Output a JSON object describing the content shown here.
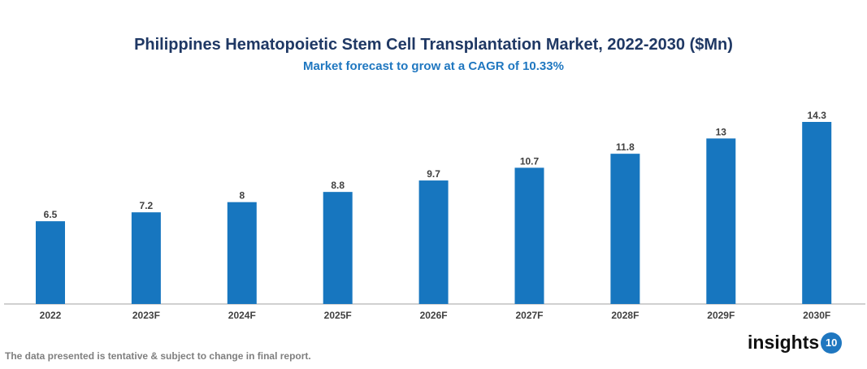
{
  "chart_data": {
    "type": "bar",
    "title": "Philippines Hematopoietic Stem Cell Transplantation Market, 2022-2030 ($Mn)",
    "subtitle": "Market forecast to grow at a CAGR of 10.33%",
    "categories": [
      "2022",
      "2023F",
      "2024F",
      "2025F",
      "2026F",
      "2027F",
      "2028F",
      "2029F",
      "2030F"
    ],
    "values": [
      6.5,
      7.2,
      8,
      8.8,
      9.7,
      10.7,
      11.8,
      13,
      14.3
    ],
    "data_labels": [
      "6.5",
      "7.2",
      "8",
      "8.8",
      "9.7",
      "10.7",
      "11.8",
      "13",
      "14.3"
    ],
    "xlabel": "",
    "ylabel": "",
    "ylim": [
      0,
      14.3
    ],
    "grid": false,
    "legend": "none",
    "bar_color": "#1776bf"
  },
  "footnote": "The data presented is tentative & subject to change in final report.",
  "logo": {
    "text": "insights",
    "badge": "10"
  }
}
